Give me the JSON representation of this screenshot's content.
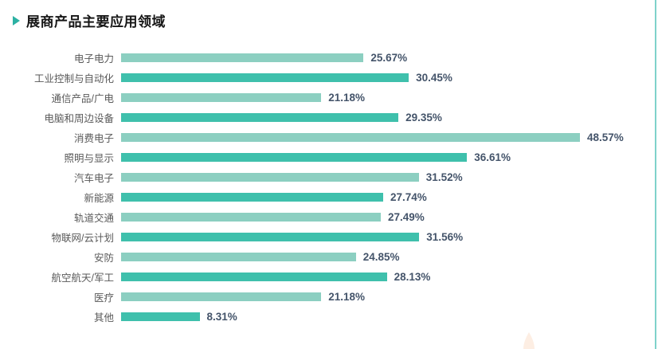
{
  "title": {
    "text": "展商产品主要应用领域",
    "marker": "triangle-right"
  },
  "colors": {
    "title_marker": "#2cb1a3",
    "bar_light": "#8ccfc1",
    "bar_dark": "#3fc0ac",
    "value_label": "#44546a",
    "category_label": "#595959",
    "right_edge_line": "#7fd2cb",
    "deco_peach": "#fdeee3"
  },
  "chart_data": {
    "type": "bar",
    "orientation": "horizontal",
    "title": "展商产品主要应用领域",
    "xlabel": "",
    "ylabel": "",
    "xlim": [
      0,
      50
    ],
    "grid": false,
    "legend": false,
    "bar_colors_alternating": [
      "#8ccfc1",
      "#3fc0ac"
    ],
    "categories": [
      "电子电力",
      "工业控制与自动化",
      "通信产品/广电",
      "电脑和周边设备",
      "消费电子",
      "照明与显示",
      "汽车电子",
      "新能源",
      "轨道交通",
      "物联网/云计划",
      "安防",
      "航空航天/军工",
      "医疗",
      "其他"
    ],
    "values": [
      25.67,
      30.45,
      21.18,
      29.35,
      48.57,
      36.61,
      31.52,
      27.74,
      27.49,
      31.56,
      24.85,
      28.13,
      21.18,
      8.31
    ],
    "display_labels": [
      "25.67%",
      "30.45%",
      "21.18%",
      "29.35%",
      "48.57%",
      "36.61%",
      "31.52%",
      "27.74%",
      "27.49%",
      "31.56%",
      "24.85%",
      "28.13%",
      "21.18%",
      "8.31%"
    ]
  }
}
